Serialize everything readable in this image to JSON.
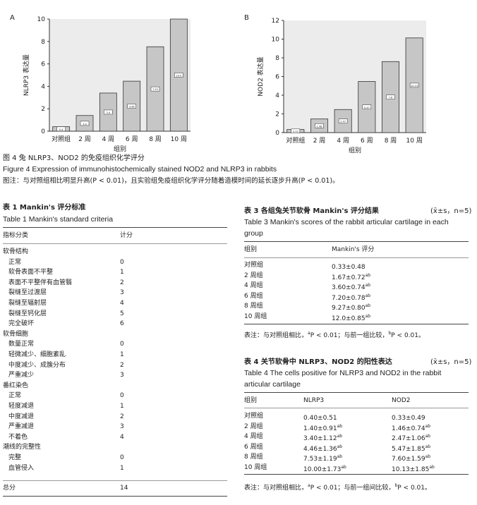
{
  "figure": {
    "panel_a_label": "A",
    "panel_b_label": "B",
    "caption_cn": "图 4  兔 NLRP3、NOD2 的免疫组织化学评分",
    "caption_en": "Figure 4   Expression of immunohistochemically stained NOD2 and NLRP3 in rabbits",
    "note": "图注：与对照组相比明显升高(P < 0.01)，且实验组免疫组织化学评分随着造模时间的延长逐步升高(P < 0.01)。"
  },
  "chart_data": [
    {
      "type": "bar",
      "panel": "A",
      "categories": [
        "对照组",
        "2 周",
        "4 周",
        "6 周",
        "8 周",
        "10 周"
      ],
      "values": [
        0.4,
        1.4,
        3.4,
        4.46,
        7.53,
        10.0
      ],
      "bar_labels": [
        "0.4",
        "1.4",
        "3.4",
        "4.46",
        "7.53",
        "10.0"
      ],
      "xlabel": "组别",
      "ylabel": "NLRP3 表达量",
      "ylim": [
        0,
        10
      ],
      "yticks": [
        "0",
        "2",
        "4",
        "6",
        "8",
        "10"
      ]
    },
    {
      "type": "bar",
      "panel": "B",
      "categories": [
        "对照组",
        "2 周",
        "4 周",
        "6 周",
        "8 周",
        "10 周"
      ],
      "values": [
        0.33,
        1.46,
        2.47,
        5.47,
        7.6,
        10.13
      ],
      "bar_labels": [
        "0.33",
        "1.46",
        "2.47",
        "5.47",
        "7.6",
        "10.13"
      ],
      "xlabel": "组别",
      "ylabel": "NOD2 表达量",
      "ylim": [
        0,
        12
      ],
      "yticks": [
        "0",
        "2",
        "4",
        "6",
        "8",
        "10",
        "12"
      ]
    }
  ],
  "table1": {
    "title_cn": "表 1   Mankin's 评分标准",
    "title_en": "Table 1   Mankin's standard criteria",
    "headers": [
      "指标分类",
      "计分"
    ],
    "rows": [
      [
        "软骨结构",
        ""
      ],
      [
        "正常",
        "0"
      ],
      [
        "软骨表面不平整",
        "1"
      ],
      [
        "表面不平整伴有血管翳",
        "2"
      ],
      [
        "裂缝至过渡层",
        "3"
      ],
      [
        "裂缝至辐射层",
        "4"
      ],
      [
        "裂缝至钙化层",
        "5"
      ],
      [
        "完全破坏",
        "6"
      ],
      [
        "软骨细胞",
        ""
      ],
      [
        "数量正常",
        "0"
      ],
      [
        "轻微减少、细胞紊乱",
        "1"
      ],
      [
        "中度减少、成簇分布",
        "2"
      ],
      [
        "严重减少",
        "3"
      ],
      [
        "番红染色",
        ""
      ],
      [
        "正常",
        "0"
      ],
      [
        "轻度减退",
        "1"
      ],
      [
        "中度减退",
        "2"
      ],
      [
        "严重减退",
        "3"
      ],
      [
        "不着色",
        "4"
      ],
      [
        "潮线的完整性",
        ""
      ],
      [
        "完整",
        "0"
      ],
      [
        "血管侵入",
        "1"
      ]
    ],
    "total_label": "总分",
    "total_value": "14"
  },
  "table3": {
    "title_cn": "表 3   各组兔关节软骨 Mankin's 评分结果",
    "stat": "(x̄±s，n=5)",
    "title_en_1": "Table 3   Mankin's scores of the rabbit articular cartilage in each",
    "title_en_2": "group",
    "headers": [
      "组别",
      "Mankin's 评分"
    ],
    "rows": [
      [
        "对照组",
        "0.33±0.48",
        ""
      ],
      [
        "2 周组",
        "1.67±0.72",
        "ab"
      ],
      [
        "4 周组",
        "3.60±0.74",
        "ab"
      ],
      [
        "6 周组",
        "7.20±0.78",
        "ab"
      ],
      [
        "8 周组",
        "9.27±0.80",
        "ab"
      ],
      [
        "10 周组",
        "12.0±0.85",
        "ab"
      ]
    ],
    "note_a": "表注：与对照组相比，",
    "note_b": "P < 0.01；与前一组比较，",
    "note_c": "P < 0.01。",
    "sup_a": "a",
    "sup_b": "b"
  },
  "table4": {
    "title_cn": "表 4   关节软骨中 NLRP3、NOD2 的阳性表达",
    "stat": "(x̄±s，n=5)",
    "title_en_1": "Table 4   The cells positive for NLRP3 and NOD2 in the rabbit",
    "title_en_2": "articular cartilage",
    "headers": [
      "组别",
      "NLRP3",
      "NOD2"
    ],
    "rows": [
      [
        "对照组",
        "0.40±0.51",
        "",
        "0.33±0.49",
        ""
      ],
      [
        "2 周组",
        "1.40±0.91",
        "ab",
        "1.46±0.74",
        "ab"
      ],
      [
        "4 周组",
        "3.40±1.12",
        "ab",
        "2.47±1.06",
        "ab"
      ],
      [
        "6 周组",
        "4.46±1.36",
        "ab",
        "5.47±1.85",
        "ab"
      ],
      [
        "8 周组",
        "7.53±1.19",
        "ab",
        "7.60±1.59",
        "ab"
      ],
      [
        "10 周组",
        "10.00±1.73",
        "ab",
        "10.13±1.85",
        "ab"
      ]
    ],
    "note_a": "表注：与对照组相比，",
    "note_b": "P < 0.01；与前一组间比较，",
    "note_c": "P < 0.01。",
    "sup_a": "a",
    "sup_b": "b"
  }
}
